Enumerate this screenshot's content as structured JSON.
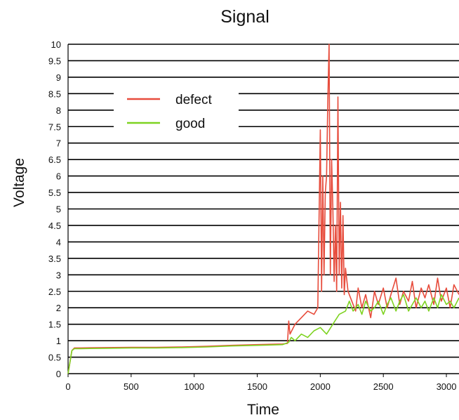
{
  "chart_data": {
    "type": "line",
    "title": "Signal",
    "xlabel": "Time",
    "ylabel": "Voltage",
    "xlim": [
      0,
      3100
    ],
    "ylim": [
      0,
      10
    ],
    "x_ticks": [
      0,
      500,
      1000,
      1500,
      2000,
      2500,
      3000
    ],
    "y_ticks": [
      0,
      0.5,
      1,
      1.5,
      2,
      2.5,
      3,
      3.5,
      4,
      4.5,
      5,
      5.5,
      6,
      6.5,
      7,
      7.5,
      8,
      8.5,
      9,
      9.5,
      10
    ],
    "grid": true,
    "legend_position": "top-left",
    "series": [
      {
        "name": "defect",
        "color": "#e74c3c",
        "x": [
          0,
          30,
          50,
          100,
          300,
          500,
          700,
          900,
          1100,
          1300,
          1500,
          1700,
          1740,
          1750,
          1760,
          1800,
          1850,
          1900,
          1950,
          1980,
          2000,
          2010,
          2020,
          2030,
          2040,
          2050,
          2060,
          2070,
          2080,
          2090,
          2100,
          2110,
          2120,
          2130,
          2140,
          2150,
          2160,
          2170,
          2180,
          2190,
          2200,
          2220,
          2250,
          2280,
          2300,
          2330,
          2360,
          2400,
          2430,
          2460,
          2500,
          2530,
          2560,
          2600,
          2630,
          2660,
          2700,
          2730,
          2760,
          2800,
          2830,
          2860,
          2900,
          2930,
          2960,
          3000,
          3030,
          3060,
          3100
        ],
        "y": [
          0,
          0.7,
          0.78,
          0.78,
          0.79,
          0.8,
          0.8,
          0.81,
          0.83,
          0.86,
          0.88,
          0.9,
          0.92,
          1.6,
          1.2,
          1.5,
          1.7,
          1.9,
          1.8,
          2.0,
          7.4,
          2.5,
          6.0,
          3.0,
          5.5,
          6.0,
          8.3,
          10.0,
          3.0,
          6.5,
          5.0,
          2.8,
          4.5,
          2.5,
          8.4,
          3.0,
          5.2,
          2.6,
          4.8,
          2.4,
          3.2,
          2.5,
          2.2,
          1.9,
          2.6,
          2.0,
          2.4,
          1.7,
          2.5,
          2.1,
          2.6,
          2.0,
          2.4,
          2.9,
          2.1,
          2.5,
          2.2,
          2.8,
          2.0,
          2.6,
          2.3,
          2.7,
          2.1,
          2.9,
          2.2,
          2.6,
          2.0,
          2.7,
          2.4
        ]
      },
      {
        "name": "good",
        "color": "#7ed321",
        "x": [
          0,
          30,
          50,
          100,
          300,
          500,
          700,
          900,
          1100,
          1300,
          1500,
          1700,
          1750,
          1770,
          1800,
          1850,
          1900,
          1950,
          2000,
          2050,
          2100,
          2150,
          2200,
          2230,
          2260,
          2300,
          2330,
          2360,
          2400,
          2430,
          2460,
          2500,
          2530,
          2560,
          2600,
          2630,
          2660,
          2700,
          2730,
          2760,
          2800,
          2830,
          2860,
          2900,
          2930,
          2960,
          3000,
          3030,
          3060,
          3100
        ],
        "y": [
          0,
          0.7,
          0.76,
          0.76,
          0.77,
          0.78,
          0.78,
          0.79,
          0.81,
          0.84,
          0.86,
          0.88,
          0.95,
          1.1,
          1.0,
          1.2,
          1.1,
          1.3,
          1.4,
          1.2,
          1.5,
          1.8,
          1.9,
          2.2,
          1.9,
          2.1,
          1.8,
          2.2,
          1.9,
          2.0,
          2.2,
          1.8,
          2.1,
          2.3,
          1.9,
          2.2,
          2.4,
          1.9,
          2.1,
          2.3,
          2.0,
          2.2,
          1.9,
          2.3,
          2.0,
          2.4,
          2.1,
          2.2,
          2.0,
          2.3
        ]
      }
    ]
  }
}
